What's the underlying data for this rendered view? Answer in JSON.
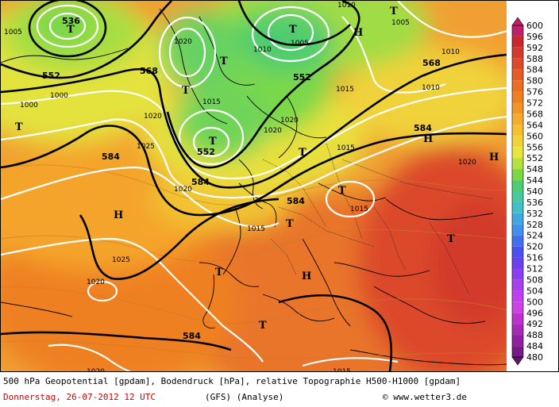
{
  "caption": {
    "line1": "500 hPa Geopotential [gpdam], Bodendruck [hPa], relative Topographie H500-H1000 [gpdam]",
    "date": "Donnerstag, 26-07-2012  12 UTC",
    "source": "(GFS)  (Analyse)",
    "credit": "© www.wetter3.de"
  },
  "legend": {
    "levels": [
      600,
      596,
      592,
      588,
      584,
      580,
      576,
      572,
      568,
      564,
      560,
      556,
      552,
      548,
      544,
      540,
      536,
      532,
      528,
      524,
      520,
      516,
      512,
      508,
      504,
      500,
      496,
      492,
      488,
      484,
      480
    ],
    "colors": [
      "#c0206a",
      "#c8282e",
      "#d23a2c",
      "#dc4a2a",
      "#e45c26",
      "#ea6e24",
      "#ef8022",
      "#f39426",
      "#f6aa2e",
      "#f4c030",
      "#f2d23a",
      "#e6e63c",
      "#b4e040",
      "#7ad848",
      "#50cc70",
      "#46c8a0",
      "#40c0c8",
      "#40a8e0",
      "#4090f0",
      "#4070f0",
      "#4a50f0",
      "#6a40f0",
      "#8a40f0",
      "#a840f0",
      "#c040f0",
      "#d040e8",
      "#c030d0",
      "#a828b8",
      "#9020a0",
      "#781a88",
      "#60146e"
    ]
  },
  "map": {
    "geopotential_labels": [
      "536",
      "552",
      "552",
      "552",
      "568",
      "568",
      "584",
      "584",
      "584",
      "584",
      "584"
    ],
    "pressure_labels": [
      "1005",
      "1005",
      "1005",
      "1010",
      "1010",
      "1010",
      "1000",
      "1000",
      "1020",
      "1020",
      "1020",
      "1020",
      "1015",
      "1015",
      "1015",
      "1015",
      "1025",
      "1025",
      "1020",
      "1020",
      "1020",
      "1015",
      "1010",
      "1015",
      "1020"
    ],
    "centers": [
      "T",
      "T",
      "T",
      "T",
      "T",
      "T",
      "T",
      "T",
      "T",
      "T",
      "T",
      "T",
      "H",
      "H",
      "H",
      "H",
      "H"
    ]
  }
}
